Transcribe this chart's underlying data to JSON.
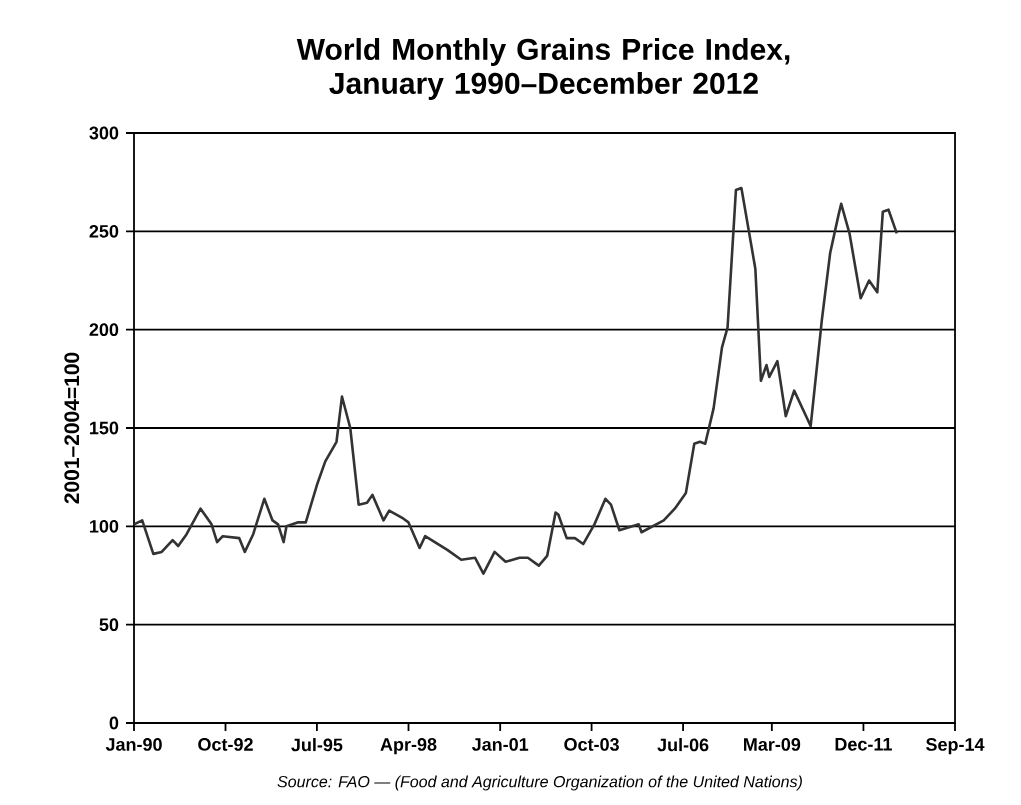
{
  "chart_data": {
    "type": "line",
    "title": "World Monthly Grains Price Index, January 1990–December 2012",
    "ylabel": "2001–2004=100",
    "annotations": [
      "Source: FAO — (Food and Agriculture Organization of the United Nations)"
    ],
    "x": [
      "1990-01",
      "1990-04",
      "1990-08",
      "1990-11",
      "1991-03",
      "1991-05",
      "1991-08",
      "1992-01",
      "1992-05",
      "1992-07",
      "1992-09",
      "1993-03",
      "1993-05",
      "1993-08",
      "1993-12",
      "1994-03",
      "1994-05",
      "1994-07",
      "1994-08",
      "1994-12",
      "1995-03",
      "1995-07",
      "1995-10",
      "1996-02",
      "1996-04",
      "1996-07",
      "1996-10",
      "1997-01",
      "1997-03",
      "1997-07",
      "1997-09",
      "1998-02",
      "1998-04",
      "1998-08",
      "1998-10",
      "1999-06",
      "1999-11",
      "2000-04",
      "2000-07",
      "2000-11",
      "2001-03",
      "2001-08",
      "2001-11",
      "2002-03",
      "2002-06",
      "2002-09",
      "2002-10",
      "2003-01",
      "2003-04",
      "2003-07",
      "2003-11",
      "2004-03",
      "2004-05",
      "2004-08",
      "2005-03",
      "2005-04",
      "2005-12",
      "2006-04",
      "2006-08",
      "2006-11",
      "2007-01",
      "2007-03",
      "2007-06",
      "2007-09",
      "2007-11",
      "2008-02",
      "2008-04",
      "2008-09",
      "2008-11",
      "2009-01",
      "2009-02",
      "2009-05",
      "2009-08",
      "2009-11",
      "2010-05",
      "2010-09",
      "2010-12",
      "2011-03",
      "2011-04",
      "2011-07",
      "2011-11",
      "2012-02",
      "2012-05",
      "2012-07",
      "2012-09",
      "2012-12"
    ],
    "series": [
      {
        "color": "#333333",
        "values": [
          101,
          103,
          86,
          87,
          93,
          90,
          96,
          109,
          101,
          92,
          95,
          94,
          87,
          96,
          114,
          103,
          101,
          92,
          100,
          102,
          102,
          121,
          133,
          143,
          166,
          150,
          111,
          112,
          116,
          103,
          108,
          104,
          102,
          89,
          95,
          88,
          83,
          84,
          76,
          87,
          82,
          84,
          84,
          80,
          85,
          107,
          106,
          94,
          94,
          91,
          101,
          114,
          111,
          98,
          101,
          97,
          103,
          109,
          117,
          142,
          143,
          142,
          160,
          191,
          201,
          271,
          272,
          231,
          174,
          182,
          176,
          184,
          156,
          169,
          151,
          205,
          239,
          258,
          264,
          249,
          216,
          225,
          219,
          260,
          261,
          249
        ]
      }
    ],
    "xlim": [
      "1990-01",
      "2014-09"
    ],
    "xticks": [
      {
        "value": "1990-01",
        "label": "Jan-90"
      },
      {
        "value": "1992-10",
        "label": "Oct-92"
      },
      {
        "value": "1995-07",
        "label": "Jul-95"
      },
      {
        "value": "1998-04",
        "label": "Apr-98"
      },
      {
        "value": "2001-01",
        "label": "Jan-01"
      },
      {
        "value": "2003-10",
        "label": "Oct-03"
      },
      {
        "value": "2006-07",
        "label": "Jul-06"
      },
      {
        "value": "2009-03",
        "label": "Mar-09"
      },
      {
        "value": "2011-12",
        "label": "Dec-11"
      },
      {
        "value": "2014-09",
        "label": "Sep-14"
      }
    ],
    "ylim": [
      0,
      300
    ],
    "yticks": [
      0,
      50,
      100,
      150,
      200,
      250,
      300
    ],
    "grid": "y"
  }
}
